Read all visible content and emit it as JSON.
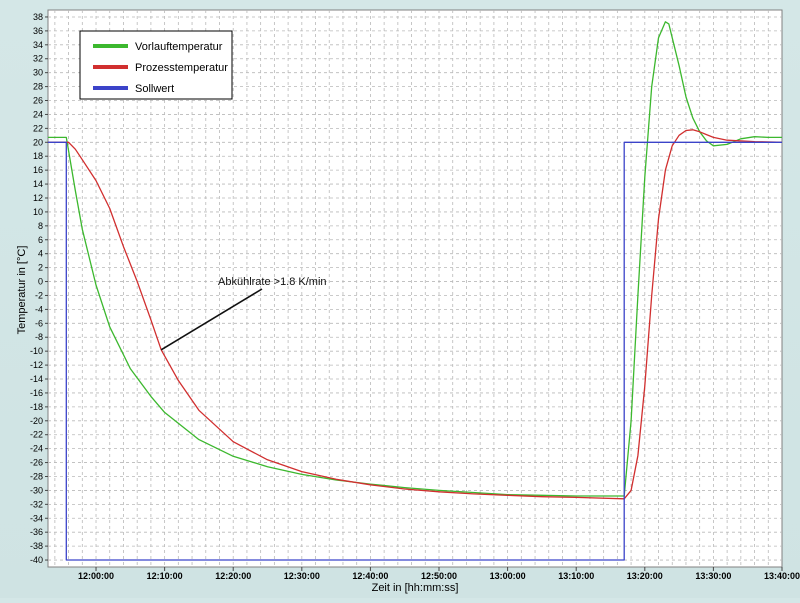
{
  "chart_data": {
    "type": "line",
    "xlabel": "Zeit in [hh:mm:ss]",
    "ylabel": "Temperatur in [°C]",
    "xlim": [
      "11:53:00",
      "13:40:00"
    ],
    "ylim": [
      -41,
      39
    ],
    "x_ticks": [
      "12:00:00",
      "12:10:00",
      "12:20:00",
      "12:30:00",
      "12:40:00",
      "12:50:00",
      "13:00:00",
      "13:10:00",
      "13:20:00",
      "13:30:00",
      "13:40:00"
    ],
    "y_ticks": [
      38,
      36,
      34,
      32,
      30,
      28,
      26,
      24,
      22,
      20,
      18,
      16,
      14,
      12,
      10,
      8,
      6,
      4,
      2,
      0,
      -2,
      -4,
      -6,
      -8,
      -10,
      -12,
      -14,
      -16,
      -18,
      -20,
      -22,
      -24,
      -26,
      -28,
      -30,
      -32,
      -34,
      -36,
      -38,
      -40
    ],
    "grid": true,
    "legend_position": "top-left",
    "annotation": {
      "text": "Abkühlrate >1.8 K/min",
      "target": {
        "x": "12:09:30",
        "y": -9.8
      }
    },
    "series": [
      {
        "name": "Vorlauftemperatur",
        "color": "#3cb82e",
        "points": [
          [
            "11:53:00",
            20.7
          ],
          [
            "11:55:00",
            20.7
          ],
          [
            "11:55:40",
            20.7
          ],
          [
            "11:57:00",
            13
          ],
          [
            "11:58:00",
            7.5
          ],
          [
            "12:00:00",
            -0.5
          ],
          [
            "12:02:00",
            -6.5
          ],
          [
            "12:05:00",
            -12.5
          ],
          [
            "12:08:00",
            -16.5
          ],
          [
            "12:10:00",
            -18.8
          ],
          [
            "12:15:00",
            -22.7
          ],
          [
            "12:20:00",
            -25.1
          ],
          [
            "12:25:00",
            -26.6
          ],
          [
            "12:30:00",
            -27.7
          ],
          [
            "12:35:00",
            -28.5
          ],
          [
            "12:40:00",
            -29.1
          ],
          [
            "12:45:00",
            -29.6
          ],
          [
            "12:50:00",
            -30
          ],
          [
            "12:55:00",
            -30.3
          ],
          [
            "13:00:00",
            -30.6
          ],
          [
            "13:05:00",
            -30.7
          ],
          [
            "13:10:00",
            -30.8
          ],
          [
            "13:17:00",
            -30.8
          ],
          [
            "13:18:00",
            -20
          ],
          [
            "13:19:00",
            -2
          ],
          [
            "13:20:00",
            15
          ],
          [
            "13:21:00",
            28
          ],
          [
            "13:22:00",
            35
          ],
          [
            "13:23:00",
            37.3
          ],
          [
            "13:23:30",
            37
          ],
          [
            "13:25:00",
            31
          ],
          [
            "13:26:00",
            26.5
          ],
          [
            "13:27:00",
            23.5
          ],
          [
            "13:28:00",
            21.5
          ],
          [
            "13:29:00",
            20.2
          ],
          [
            "13:30:00",
            19.5
          ],
          [
            "13:32:00",
            19.7
          ],
          [
            "13:34:00",
            20.5
          ],
          [
            "13:36:00",
            20.8
          ],
          [
            "13:38:00",
            20.7
          ],
          [
            "13:40:00",
            20.7
          ]
        ]
      },
      {
        "name": "Prozesstemperatur",
        "color": "#d12f2f",
        "points": [
          [
            "11:53:00",
            20
          ],
          [
            "11:55:00",
            20
          ],
          [
            "11:56:00",
            20
          ],
          [
            "11:57:00",
            19
          ],
          [
            "11:58:00",
            17.5
          ],
          [
            "12:00:00",
            14.5
          ],
          [
            "12:02:00",
            10.5
          ],
          [
            "12:04:00",
            5
          ],
          [
            "12:06:00",
            0
          ],
          [
            "12:08:00",
            -5.5
          ],
          [
            "12:09:30",
            -9.8
          ],
          [
            "12:12:00",
            -14.2
          ],
          [
            "12:15:00",
            -18.5
          ],
          [
            "12:20:00",
            -23
          ],
          [
            "12:25:00",
            -25.6
          ],
          [
            "12:30:00",
            -27.3
          ],
          [
            "12:35:00",
            -28.4
          ],
          [
            "12:40:00",
            -29.2
          ],
          [
            "12:45:00",
            -29.8
          ],
          [
            "12:50:00",
            -30.2
          ],
          [
            "12:55:00",
            -30.5
          ],
          [
            "13:00:00",
            -30.7
          ],
          [
            "13:05:00",
            -30.9
          ],
          [
            "13:10:00",
            -31
          ],
          [
            "13:17:00",
            -31.2
          ],
          [
            "13:18:00",
            -30
          ],
          [
            "13:19:00",
            -25
          ],
          [
            "13:20:00",
            -15
          ],
          [
            "13:21:00",
            -2
          ],
          [
            "13:22:00",
            9
          ],
          [
            "13:23:00",
            16
          ],
          [
            "13:24:00",
            19.5
          ],
          [
            "13:25:00",
            21
          ],
          [
            "13:26:00",
            21.7
          ],
          [
            "13:27:00",
            21.8
          ],
          [
            "13:28:00",
            21.5
          ],
          [
            "13:29:00",
            21.1
          ],
          [
            "13:30:00",
            20.7
          ],
          [
            "13:32:00",
            20.3
          ],
          [
            "13:36:00",
            20.1
          ],
          [
            "13:40:00",
            20
          ]
        ]
      },
      {
        "name": "Sollwert",
        "color": "#3b43c9",
        "points": [
          [
            "11:53:00",
            20
          ],
          [
            "11:55:40",
            20
          ],
          [
            "11:55:40",
            -40
          ],
          [
            "13:17:00",
            -40
          ],
          [
            "13:17:00",
            20
          ],
          [
            "13:40:00",
            20
          ]
        ]
      }
    ]
  }
}
